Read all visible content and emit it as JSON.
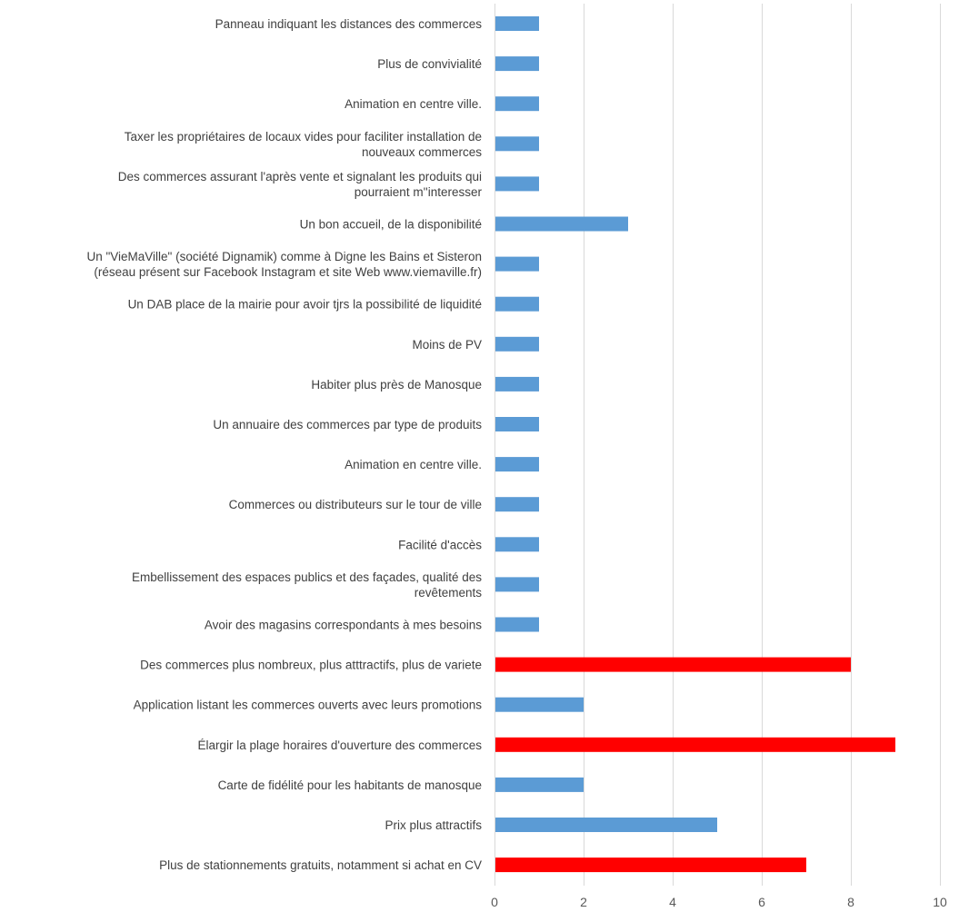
{
  "chart_data": {
    "type": "bar",
    "orientation": "horizontal",
    "title": "",
    "xlabel": "",
    "ylabel": "",
    "xlim": [
      0,
      10
    ],
    "x_ticks": [
      0,
      2,
      4,
      6,
      8,
      10
    ],
    "grid": "vertical",
    "legend": "none",
    "colors": {
      "default": "#5b9bd5",
      "highlight": "#ff0000"
    },
    "categories": [
      [
        "Panneau indiquant les distances des commerces"
      ],
      [
        "Plus de convivialité"
      ],
      [
        "Animation en centre ville."
      ],
      [
        "Taxer les propriétaires de locaux vides pour faciliter installation de",
        "nouveaux commerces"
      ],
      [
        "Des commerces assurant l'après vente et signalant les produits qui",
        "pourraient m''interesser"
      ],
      [
        "Un bon accueil, de la disponibilité"
      ],
      [
        "Un \"VieMaVille\" (société Dignamik) comme à Digne les Bains et Sisteron",
        "(réseau présent sur Facebook Instagram et site Web www.viemaville.fr)"
      ],
      [
        "Un DAB place de la mairie pour avoir tjrs la possibilité de liquidité"
      ],
      [
        "Moins de PV"
      ],
      [
        "Habiter plus près de Manosque"
      ],
      [
        "Un annuaire des commerces par type de produits"
      ],
      [
        "Animation en centre ville."
      ],
      [
        "Commerces ou distributeurs sur le tour de ville"
      ],
      [
        "Facilité d'accès"
      ],
      [
        "Embellissement des espaces publics et des façades, qualité des",
        "revêtements"
      ],
      [
        "Avoir des magasins correspondants à mes besoins"
      ],
      [
        "Des commerces plus nombreux, plus atttractifs,  plus de variete"
      ],
      [
        "Application listant les commerces ouverts avec leurs promotions"
      ],
      [
        "Élargir la plage horaires d'ouverture des commerces"
      ],
      [
        "Carte de fidélité pour les habitants de manosque"
      ],
      [
        "Prix plus attractifs"
      ],
      [
        "Plus de stationnements gratuits, notamment si achat en CV"
      ]
    ],
    "values": [
      1,
      1,
      1,
      1,
      1,
      3,
      1,
      1,
      1,
      1,
      1,
      1,
      1,
      1,
      1,
      1,
      8,
      2,
      9,
      2,
      5,
      7
    ],
    "highlighted": [
      false,
      false,
      false,
      false,
      false,
      false,
      false,
      false,
      false,
      false,
      false,
      false,
      false,
      false,
      false,
      false,
      true,
      false,
      true,
      false,
      false,
      true
    ]
  }
}
